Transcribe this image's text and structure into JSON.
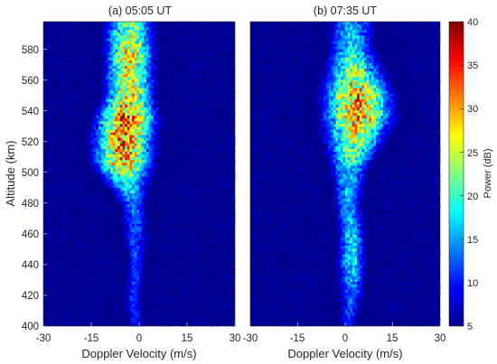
{
  "chart_data": [
    {
      "type": "heatmap",
      "title": "(a)  05:05 UT",
      "xlabel": "Doppler Velocity (m/s)",
      "ylabel": "Altitude (km)",
      "xlim": [
        -30,
        30
      ],
      "ylim": [
        400,
        598
      ],
      "xticks": [
        "-30",
        "-15",
        "0",
        "15",
        "30"
      ],
      "yticks": [
        "400",
        "420",
        "440",
        "460",
        "480",
        "500",
        "520",
        "540",
        "560",
        "580"
      ],
      "colormap": "jet",
      "background_color": "#00008f",
      "profile": [
        {
          "alt": 400,
          "center": -1,
          "width": 2,
          "peak_db": 10
        },
        {
          "alt": 420,
          "center": -2,
          "width": 2,
          "peak_db": 12
        },
        {
          "alt": 440,
          "center": -1,
          "width": 2,
          "peak_db": 12
        },
        {
          "alt": 460,
          "center": -1,
          "width": 3,
          "peak_db": 13
        },
        {
          "alt": 480,
          "center": -2,
          "width": 3,
          "peak_db": 15
        },
        {
          "alt": 495,
          "center": -4,
          "width": 5,
          "peak_db": 22
        },
        {
          "alt": 505,
          "center": -5,
          "width": 6,
          "peak_db": 33
        },
        {
          "alt": 520,
          "center": -5,
          "width": 6,
          "peak_db": 36
        },
        {
          "alt": 535,
          "center": -4,
          "width": 6,
          "peak_db": 37
        },
        {
          "alt": 550,
          "center": -3,
          "width": 5,
          "peak_db": 30
        },
        {
          "alt": 565,
          "center": -3,
          "width": 5,
          "peak_db": 29
        },
        {
          "alt": 580,
          "center": -3,
          "width": 5,
          "peak_db": 30
        },
        {
          "alt": 598,
          "center": -3,
          "width": 5,
          "peak_db": 24
        }
      ]
    },
    {
      "type": "heatmap",
      "title": "(b)  07:35 UT",
      "xlabel": "Doppler Velocity (m/s)",
      "ylabel": "",
      "xlim": [
        -30,
        30
      ],
      "ylim": [
        400,
        598
      ],
      "xticks": [
        "-30",
        "-15",
        "0",
        "15",
        "30"
      ],
      "colormap": "jet",
      "background_color": "#00008f",
      "profile": [
        {
          "alt": 400,
          "center": 1,
          "width": 2,
          "peak_db": 10
        },
        {
          "alt": 420,
          "center": 2,
          "width": 3,
          "peak_db": 14
        },
        {
          "alt": 440,
          "center": 2,
          "width": 3,
          "peak_db": 20
        },
        {
          "alt": 460,
          "center": 2,
          "width": 3,
          "peak_db": 18
        },
        {
          "alt": 480,
          "center": 1,
          "width": 3,
          "peak_db": 17
        },
        {
          "alt": 500,
          "center": 1,
          "width": 4,
          "peak_db": 19
        },
        {
          "alt": 520,
          "center": 3,
          "width": 6,
          "peak_db": 27
        },
        {
          "alt": 535,
          "center": 4,
          "width": 7,
          "peak_db": 34
        },
        {
          "alt": 550,
          "center": 4,
          "width": 7,
          "peak_db": 34
        },
        {
          "alt": 565,
          "center": 3,
          "width": 6,
          "peak_db": 26
        },
        {
          "alt": 580,
          "center": 2,
          "width": 5,
          "peak_db": 19
        },
        {
          "alt": 598,
          "center": 2,
          "width": 5,
          "peak_db": 17
        }
      ]
    }
  ],
  "colorbar": {
    "label": "Power (dB)",
    "range": [
      5,
      40
    ],
    "ticks": [
      "5",
      "10",
      "15",
      "20",
      "25",
      "30",
      "35",
      "40"
    ],
    "colormap": "jet"
  }
}
